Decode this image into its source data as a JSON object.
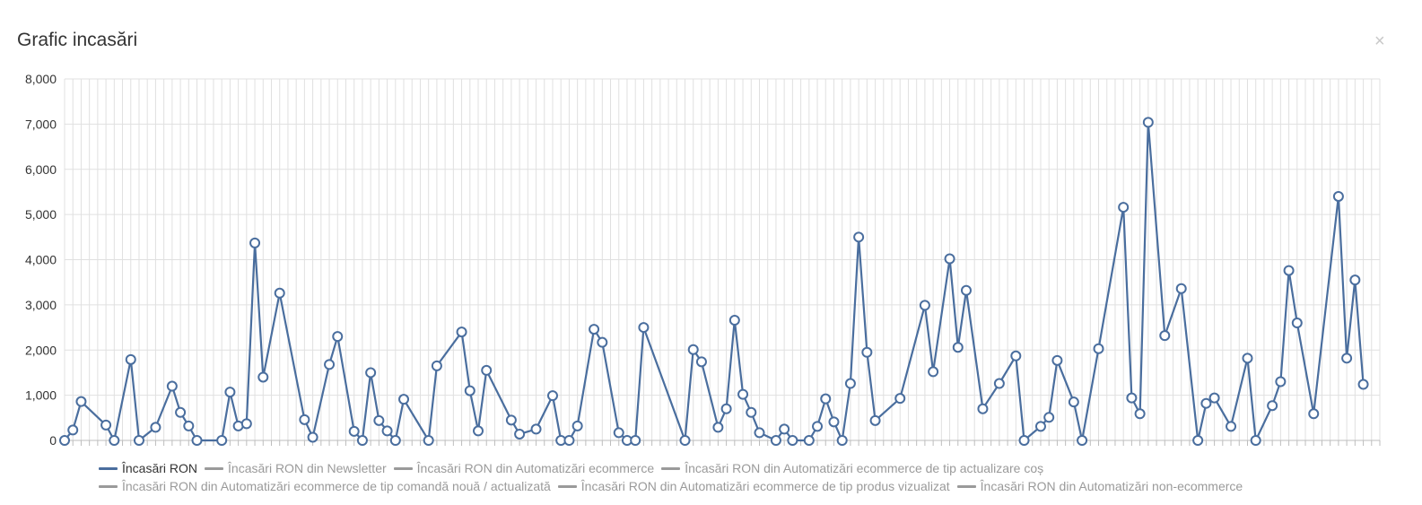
{
  "modal": {
    "title": "Grafic incasări",
    "close": "×"
  },
  "colors": {
    "series_active": "#4a6e9e",
    "series_inactive": "#9a9a9a",
    "grid": "#e0e0e0",
    "axis": "#bdbdbd",
    "tick_text": "#333333"
  },
  "chart_data": {
    "type": "line",
    "title": "",
    "xlabel": "",
    "ylabel": "",
    "ylim": [
      0,
      8000
    ],
    "y_ticks": [
      "0",
      "1,000",
      "2,000",
      "3,000",
      "4,000",
      "5,000",
      "6,000",
      "7,000",
      "8,000"
    ],
    "y_tick_values": [
      0,
      1000,
      2000,
      3000,
      4000,
      5000,
      6000,
      7000,
      8000
    ],
    "grid": true,
    "legend_position": "bottom",
    "x_count": 160,
    "series": [
      {
        "name": "Încasări RON",
        "active": true,
        "points": [
          [
            0,
            0
          ],
          [
            1,
            230
          ],
          [
            2,
            860
          ],
          [
            5,
            340
          ],
          [
            6,
            0
          ],
          [
            8,
            1790
          ],
          [
            9,
            0
          ],
          [
            11,
            290
          ],
          [
            13,
            1200
          ],
          [
            14,
            620
          ],
          [
            15,
            320
          ],
          [
            16,
            0
          ],
          [
            19,
            0
          ],
          [
            20,
            1070
          ],
          [
            21,
            320
          ],
          [
            22,
            370
          ],
          [
            23,
            4370
          ],
          [
            24,
            1400
          ],
          [
            26,
            3260
          ],
          [
            29,
            460
          ],
          [
            30,
            70
          ],
          [
            32,
            1680
          ],
          [
            33,
            2300
          ],
          [
            35,
            200
          ],
          [
            36,
            0
          ],
          [
            37,
            1500
          ],
          [
            38,
            440
          ],
          [
            39,
            210
          ],
          [
            40,
            0
          ],
          [
            41,
            910
          ],
          [
            44,
            0
          ],
          [
            45,
            1650
          ],
          [
            48,
            2400
          ],
          [
            49,
            1100
          ],
          [
            50,
            210
          ],
          [
            51,
            1550
          ],
          [
            54,
            450
          ],
          [
            55,
            140
          ],
          [
            57,
            250
          ],
          [
            59,
            990
          ],
          [
            60,
            0
          ],
          [
            61,
            0
          ],
          [
            62,
            320
          ],
          [
            64,
            2460
          ],
          [
            65,
            2170
          ],
          [
            67,
            170
          ],
          [
            68,
            0
          ],
          [
            69,
            0
          ],
          [
            70,
            2500
          ],
          [
            75,
            0
          ],
          [
            76,
            2010
          ],
          [
            77,
            1740
          ],
          [
            79,
            290
          ],
          [
            80,
            700
          ],
          [
            81,
            2660
          ],
          [
            82,
            1020
          ],
          [
            83,
            620
          ],
          [
            84,
            170
          ],
          [
            86,
            0
          ],
          [
            87,
            250
          ],
          [
            88,
            0
          ],
          [
            90,
            0
          ],
          [
            91,
            310
          ],
          [
            92,
            920
          ],
          [
            93,
            410
          ],
          [
            94,
            0
          ],
          [
            95,
            1260
          ],
          [
            96,
            4500
          ],
          [
            97,
            1950
          ],
          [
            98,
            440
          ],
          [
            101,
            930
          ],
          [
            104,
            2990
          ],
          [
            105,
            1520
          ],
          [
            107,
            4020
          ],
          [
            108,
            2060
          ],
          [
            109,
            3320
          ],
          [
            111,
            700
          ],
          [
            113,
            1260
          ],
          [
            115,
            1870
          ],
          [
            116,
            0
          ],
          [
            118,
            310
          ],
          [
            119,
            510
          ],
          [
            120,
            1770
          ],
          [
            122,
            850
          ],
          [
            123,
            0
          ],
          [
            125,
            2030
          ],
          [
            128,
            5160
          ],
          [
            129,
            940
          ],
          [
            130,
            590
          ],
          [
            131,
            7040
          ],
          [
            133,
            2320
          ],
          [
            135,
            3360
          ],
          [
            137,
            0
          ],
          [
            138,
            820
          ],
          [
            139,
            940
          ],
          [
            141,
            310
          ],
          [
            143,
            1820
          ],
          [
            144,
            0
          ],
          [
            146,
            770
          ],
          [
            147,
            1300
          ],
          [
            148,
            3760
          ],
          [
            149,
            2600
          ],
          [
            151,
            590
          ],
          [
            154,
            5400
          ],
          [
            155,
            1820
          ],
          [
            156,
            3550
          ],
          [
            157,
            1240
          ]
        ]
      },
      {
        "name": "Încasări RON din Newsletter",
        "active": false
      },
      {
        "name": "Încasări RON din Automatizări ecommerce",
        "active": false
      },
      {
        "name": "Încasări RON din Automatizări ecommerce de tip actualizare coș",
        "active": false
      },
      {
        "name": "Încasări RON din Automatizări ecommerce de tip comandă nouă / actualizată",
        "active": false
      },
      {
        "name": "Încasări RON din Automatizări ecommerce de tip produs vizualizat",
        "active": false
      },
      {
        "name": "Încasări RON din Automatizări non-ecommerce",
        "active": false
      }
    ]
  }
}
